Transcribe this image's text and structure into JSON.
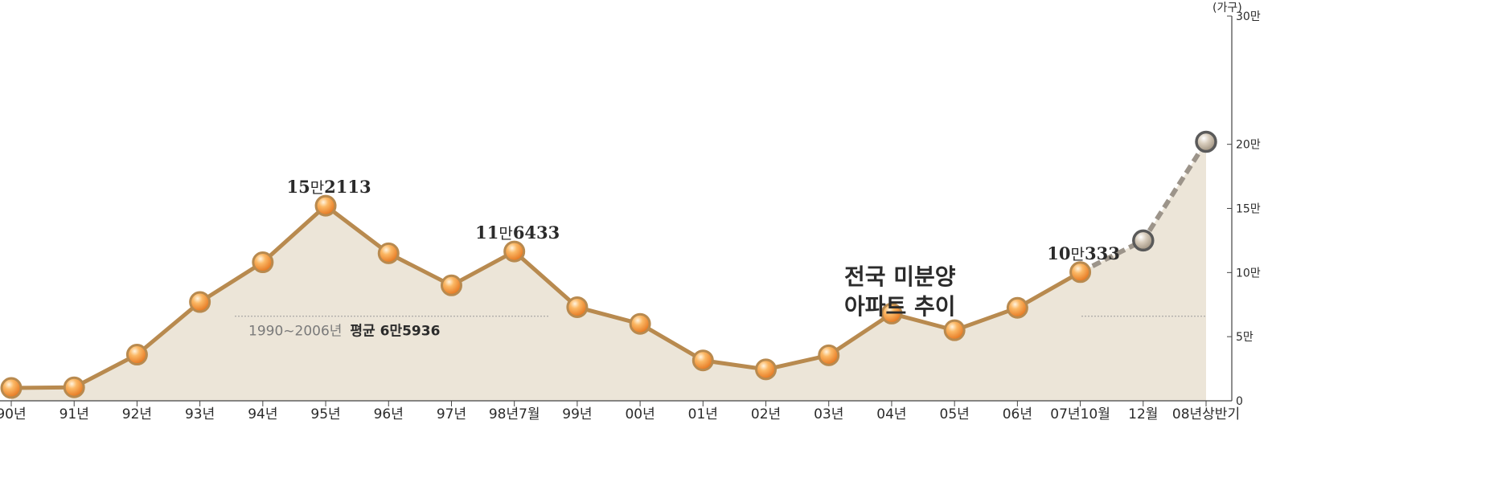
{
  "chart_data": {
    "type": "line",
    "title_lines": [
      "전국 미분양",
      "아파트 추이"
    ],
    "unit_label": "(가구)",
    "categories": [
      "90년",
      "91년",
      "92년",
      "93년",
      "94년",
      "95년",
      "96년",
      "97년",
      "98년7월",
      "99년",
      "00년",
      "01년",
      "02년",
      "03년",
      "04년",
      "05년",
      "06년",
      "07년10월",
      "12월",
      "08년상반기"
    ],
    "values": [
      10000,
      10500,
      36000,
      77000,
      108000,
      152113,
      115000,
      90000,
      116433,
      73000,
      60000,
      31500,
      24500,
      35500,
      68000,
      55000,
      72500,
      100333,
      125000,
      202000
    ],
    "projected_from_index": 17,
    "ylim": [
      0,
      300000
    ],
    "y_ticks": [
      {
        "value": 0,
        "label": "0"
      },
      {
        "value": 50000,
        "label": "5만"
      },
      {
        "value": 100000,
        "label": "10만"
      },
      {
        "value": 150000,
        "label": "15만"
      },
      {
        "value": 200000,
        "label": "20만"
      },
      {
        "value": 300000,
        "label": "30만"
      }
    ],
    "data_labels": [
      {
        "index": 5,
        "num1": "15",
        "mid": "만",
        "num2": "2113"
      },
      {
        "index": 8,
        "num1": "11",
        "mid": "만",
        "num2": "6433"
      },
      {
        "index": 17,
        "num1": "10",
        "mid": "만",
        "num2": "333"
      }
    ],
    "average": {
      "value": 65936,
      "label_period": "1990~2006년",
      "label_value": "평균  6만5936"
    },
    "colors": {
      "line": "#b88a4f",
      "area": "#ece5d8",
      "marker": "#f39a3e",
      "marker_projected": "#bfb3a1",
      "projected_line": "#9c948a",
      "axis": "#444444",
      "average_line": "#999999"
    }
  }
}
